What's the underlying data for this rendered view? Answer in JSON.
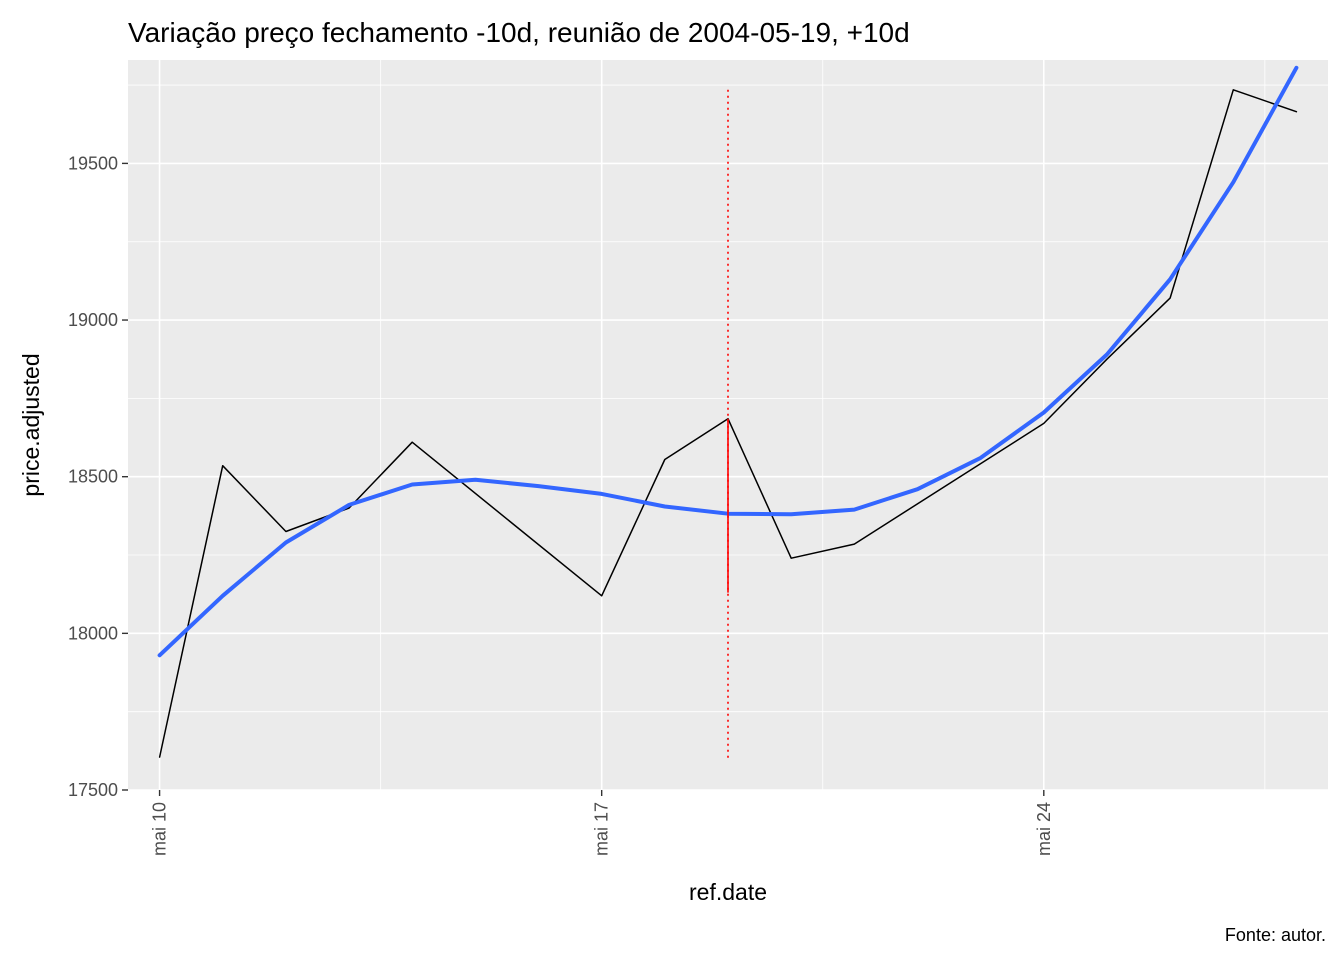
{
  "chart_data": {
    "type": "line",
    "title": "Variação preço fechamento -10d, reunião de 2004-05-19, +10d",
    "xlabel": "ref.date",
    "ylabel": "price.adjusted",
    "caption": "Fonte: autor.",
    "x_ticks": [
      {
        "date": "2004-05-10",
        "label": "mai 10"
      },
      {
        "date": "2004-05-17",
        "label": "mai 17"
      },
      {
        "date": "2004-05-24",
        "label": "mai 24"
      }
    ],
    "y_ticks": [
      17500,
      18000,
      18500,
      19000,
      19500
    ],
    "xlim": [
      "2004-05-09T12:00",
      "2004-05-28T12:00"
    ],
    "ylim": [
      17500,
      19830
    ],
    "grid": true,
    "background": "#ebebeb",
    "series": [
      {
        "style": "price-line",
        "color": "#000000",
        "points": [
          {
            "x": "2004-05-10",
            "y": 17605
          },
          {
            "x": "2004-05-11",
            "y": 18535
          },
          {
            "x": "2004-05-12",
            "y": 18325
          },
          {
            "x": "2004-05-13",
            "y": 18400
          },
          {
            "x": "2004-05-14",
            "y": 18610
          },
          {
            "x": "2004-05-17",
            "y": 18120
          },
          {
            "x": "2004-05-18",
            "y": 18555
          },
          {
            "x": "2004-05-19",
            "y": 18685
          },
          {
            "x": "2004-05-20",
            "y": 18240
          },
          {
            "x": "2004-05-21",
            "y": 18285
          },
          {
            "x": "2004-05-24",
            "y": 18670
          },
          {
            "x": "2004-05-25",
            "y": 18875
          },
          {
            "x": "2004-05-26",
            "y": 19070
          },
          {
            "x": "2004-05-27",
            "y": 19735
          },
          {
            "x": "2004-05-28",
            "y": 19665
          }
        ]
      },
      {
        "style": "smooth-trend",
        "color": "#3366ff",
        "points": [
          {
            "x": "2004-05-10",
            "y": 17930
          },
          {
            "x": "2004-05-11",
            "y": 18120
          },
          {
            "x": "2004-05-12",
            "y": 18290
          },
          {
            "x": "2004-05-13",
            "y": 18410
          },
          {
            "x": "2004-05-14",
            "y": 18475
          },
          {
            "x": "2004-05-15",
            "y": 18490
          },
          {
            "x": "2004-05-16",
            "y": 18470
          },
          {
            "x": "2004-05-17",
            "y": 18445
          },
          {
            "x": "2004-05-18",
            "y": 18405
          },
          {
            "x": "2004-05-19",
            "y": 18382
          },
          {
            "x": "2004-05-20",
            "y": 18380
          },
          {
            "x": "2004-05-21",
            "y": 18395
          },
          {
            "x": "2004-05-22",
            "y": 18460
          },
          {
            "x": "2004-05-23",
            "y": 18560
          },
          {
            "x": "2004-05-24",
            "y": 18705
          },
          {
            "x": "2004-05-25",
            "y": 18890
          },
          {
            "x": "2004-05-26",
            "y": 19130
          },
          {
            "x": "2004-05-27",
            "y": 19440
          },
          {
            "x": "2004-05-28",
            "y": 19805
          }
        ]
      }
    ],
    "meeting_marker": {
      "date": "2004-05-19",
      "color": "#ff0000",
      "dotted_range": [
        17600,
        19735
      ],
      "solid_range": [
        18130,
        18685
      ]
    }
  }
}
